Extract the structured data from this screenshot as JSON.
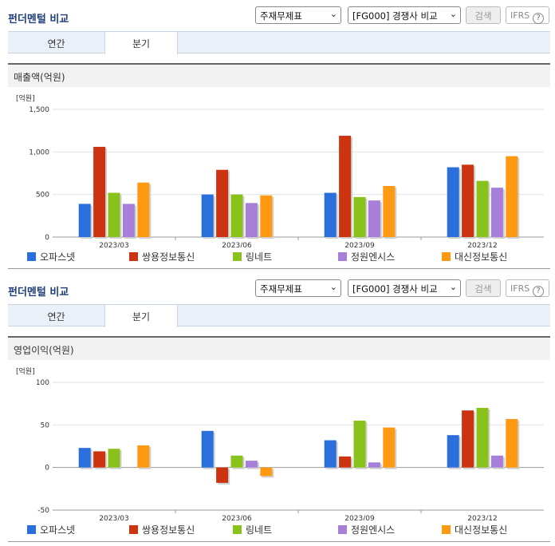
{
  "panels": [
    {
      "title": "펀더멘털 비교",
      "select1": "주재무제표",
      "select2": "[FG000] 경쟁사 비교",
      "search_label": "검색",
      "ifrs_label": "IFRS",
      "help_glyph": "?",
      "tabs": [
        {
          "label": "연간",
          "active": false
        },
        {
          "label": "분기",
          "active": true
        }
      ],
      "section_title": "매출액(억원)"
    },
    {
      "title": "펀더멘털 비교",
      "select1": "주재무제표",
      "select2": "[FG000] 경쟁사 비교",
      "search_label": "검색",
      "ifrs_label": "IFRS",
      "help_glyph": "?",
      "tabs": [
        {
          "label": "연간",
          "active": false
        },
        {
          "label": "분기",
          "active": true
        }
      ],
      "section_title": "영업이익(억원)"
    }
  ],
  "colors": {
    "오파스넷": "#2a6fdb",
    "쌍용정보통신": "#cc3311",
    "링네트": "#88c21a",
    "정원엔시스": "#a77fd9",
    "대신정보통신": "#ff9911"
  },
  "chart_data": [
    {
      "type": "bar",
      "unit_label": "[억원]",
      "categories": [
        "2023/03",
        "2023/06",
        "2023/09",
        "2023/12"
      ],
      "ylim": [
        0,
        1500
      ],
      "yticks": [
        0,
        500,
        1000,
        1500
      ],
      "ytick_labels": [
        "0",
        "500",
        "1,000",
        "1,500"
      ],
      "grid": true,
      "legend": "bottom",
      "series": [
        {
          "name": "오파스넷",
          "values": [
            390,
            500,
            520,
            820
          ]
        },
        {
          "name": "쌍용정보통신",
          "values": [
            1060,
            790,
            1190,
            850
          ]
        },
        {
          "name": "링네트",
          "values": [
            520,
            500,
            470,
            660
          ]
        },
        {
          "name": "정원엔시스",
          "values": [
            390,
            400,
            430,
            580
          ]
        },
        {
          "name": "대신정보통신",
          "values": [
            640,
            490,
            600,
            950
          ]
        }
      ]
    },
    {
      "type": "bar",
      "unit_label": "[억원]",
      "categories": [
        "2023/03",
        "2023/06",
        "2023/09",
        "2023/12"
      ],
      "ylim": [
        -50,
        100
      ],
      "yticks": [
        -50,
        0,
        50,
        100
      ],
      "ytick_labels": [
        "-50",
        "0",
        "50",
        "100"
      ],
      "grid": true,
      "legend": "bottom",
      "series": [
        {
          "name": "오파스넷",
          "values": [
            23,
            43,
            32,
            38
          ]
        },
        {
          "name": "쌍용정보통신",
          "values": [
            19,
            -18,
            13,
            67
          ]
        },
        {
          "name": "링네트",
          "values": [
            22,
            14,
            55,
            70
          ]
        },
        {
          "name": "정원엔시스",
          "values": [
            0,
            8,
            6,
            14
          ]
        },
        {
          "name": "대신정보통신",
          "values": [
            26,
            -10,
            47,
            57
          ]
        }
      ]
    }
  ]
}
